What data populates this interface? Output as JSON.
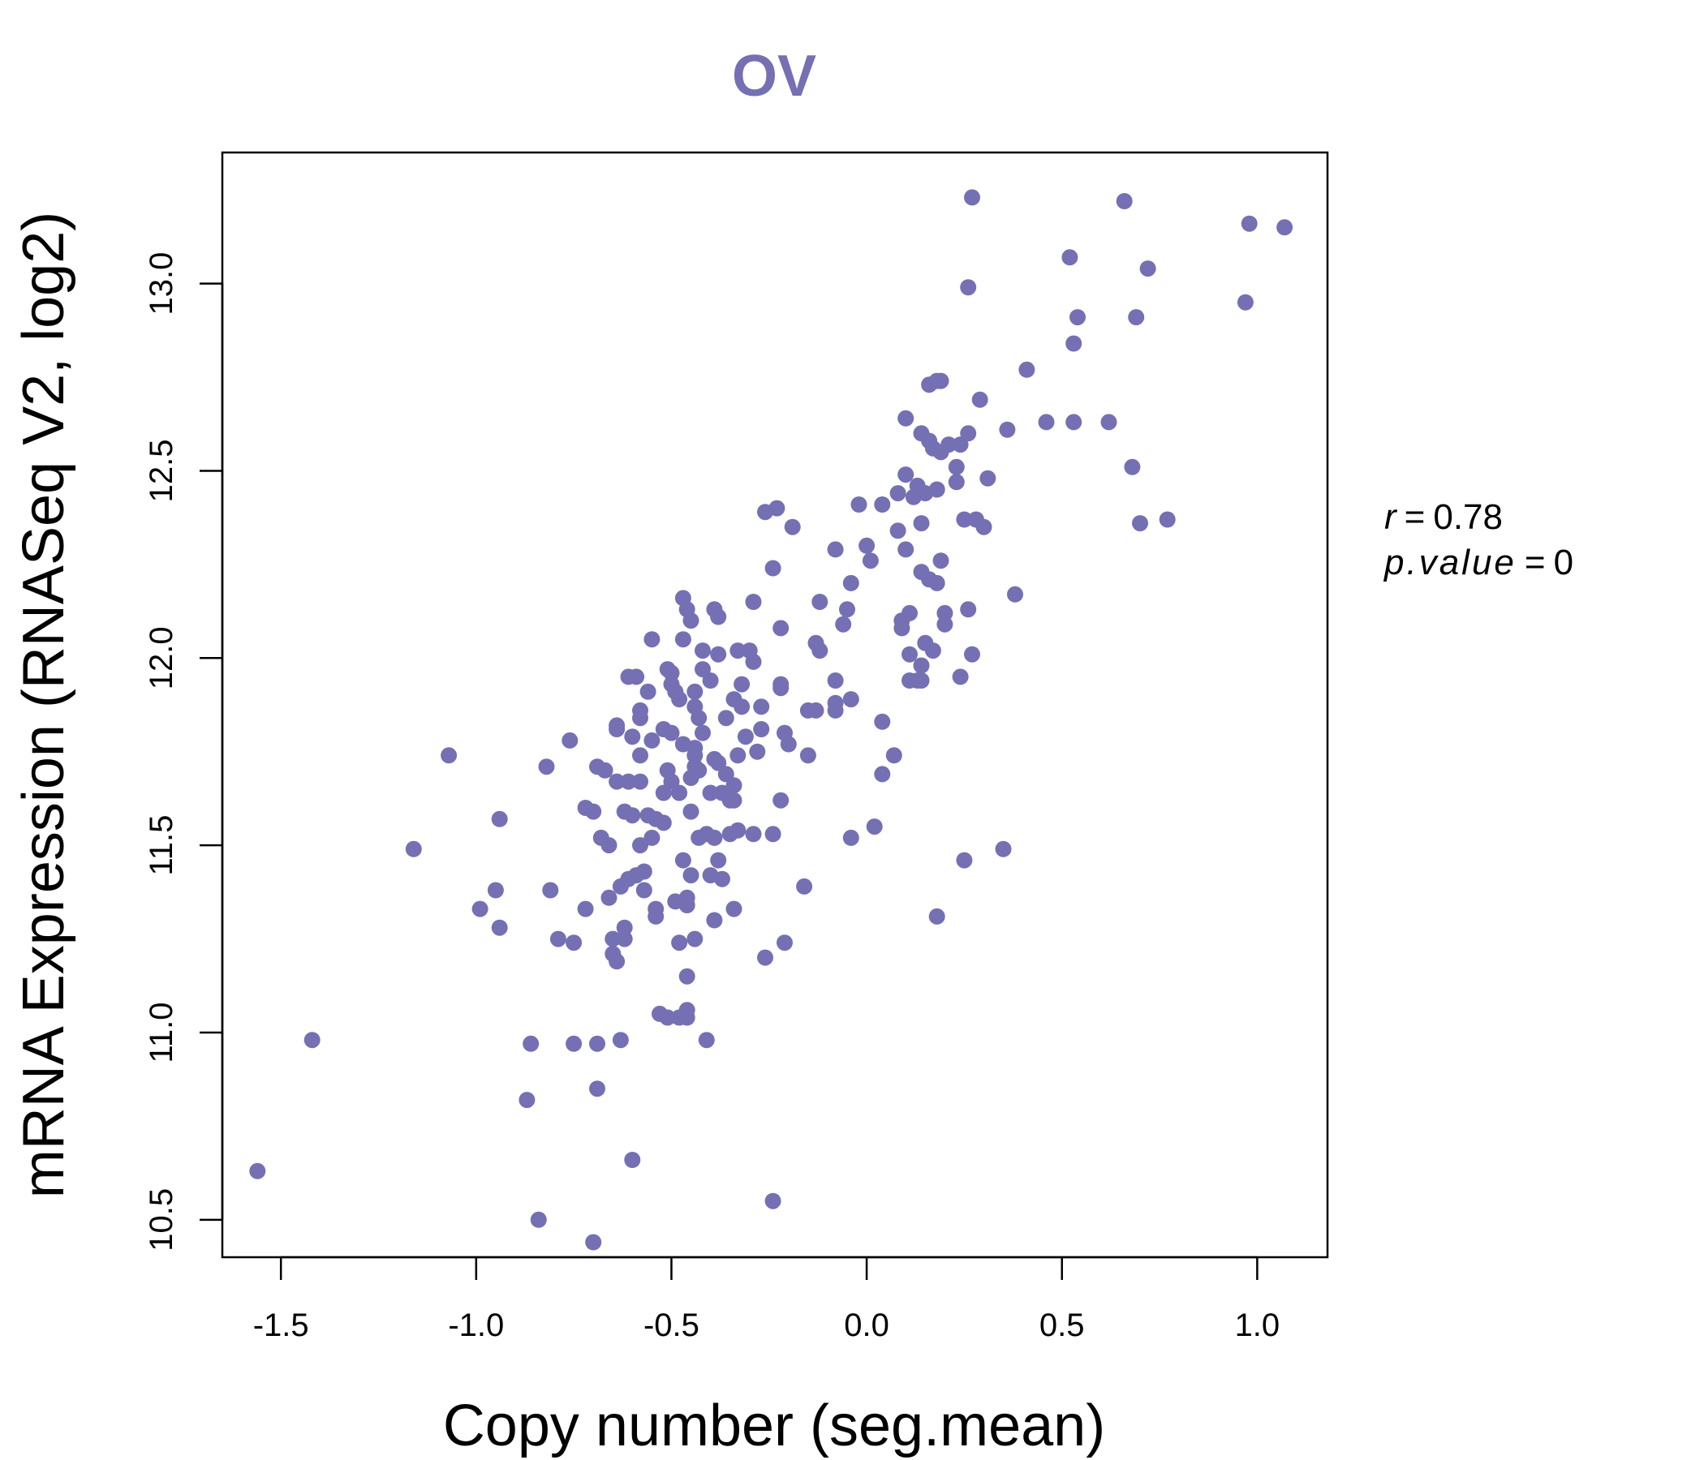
{
  "chart_data": {
    "type": "scatter",
    "title": "OV",
    "xlabel": "Copy number (seg.mean)",
    "ylabel": "mRNA Expression (RNASeq V2, log2)",
    "xlim": [
      -1.65,
      1.18
    ],
    "ylim": [
      10.4,
      13.35
    ],
    "x_ticks": [
      -1.5,
      -1.0,
      -0.5,
      0.0,
      0.5,
      1.0
    ],
    "x_tick_labels": [
      "-1.5",
      "-1.0",
      "-0.5",
      "0.0",
      "0.5",
      "1.0"
    ],
    "y_ticks": [
      10.5,
      11.0,
      11.5,
      12.0,
      12.5,
      13.0
    ],
    "y_tick_labels": [
      "10.5",
      "11.0",
      "11.5",
      "12.0",
      "12.5",
      "13.0"
    ],
    "point_color": "#7570b3",
    "stats": {
      "r_label": "r",
      "r_value": "0.78",
      "p_label": "p.value",
      "p_value": "0"
    },
    "series": [
      {
        "name": "OV",
        "points": [
          [
            -1.56,
            10.63
          ],
          [
            -1.42,
            10.98
          ],
          [
            -1.16,
            11.49
          ],
          [
            -1.07,
            11.74
          ],
          [
            -0.99,
            11.33
          ],
          [
            -0.95,
            11.38
          ],
          [
            -0.94,
            11.28
          ],
          [
            -0.94,
            11.57
          ],
          [
            -0.86,
            10.97
          ],
          [
            -0.87,
            10.82
          ],
          [
            -0.84,
            10.5
          ],
          [
            -0.82,
            11.71
          ],
          [
            -0.81,
            11.38
          ],
          [
            -0.79,
            11.25
          ],
          [
            -0.76,
            11.78
          ],
          [
            -0.75,
            11.24
          ],
          [
            -0.75,
            10.97
          ],
          [
            -0.72,
            11.6
          ],
          [
            -0.72,
            11.33
          ],
          [
            -0.7,
            11.59
          ],
          [
            -0.7,
            10.44
          ],
          [
            -0.69,
            11.71
          ],
          [
            -0.69,
            10.97
          ],
          [
            -0.69,
            10.85
          ],
          [
            -0.68,
            11.52
          ],
          [
            -0.67,
            11.7
          ],
          [
            -0.66,
            11.5
          ],
          [
            -0.66,
            11.36
          ],
          [
            -0.65,
            11.25
          ],
          [
            -0.65,
            11.21
          ],
          [
            -0.64,
            11.19
          ],
          [
            -0.64,
            11.81
          ],
          [
            -0.64,
            11.82
          ],
          [
            -0.64,
            11.67
          ],
          [
            -0.63,
            10.98
          ],
          [
            -0.63,
            11.39
          ],
          [
            -0.62,
            11.25
          ],
          [
            -0.62,
            11.28
          ],
          [
            -0.62,
            11.59
          ],
          [
            -0.61,
            11.95
          ],
          [
            -0.61,
            11.67
          ],
          [
            -0.61,
            11.41
          ],
          [
            -0.6,
            11.79
          ],
          [
            -0.6,
            11.58
          ],
          [
            -0.6,
            10.66
          ],
          [
            -0.59,
            11.95
          ],
          [
            -0.59,
            11.42
          ],
          [
            -0.58,
            11.84
          ],
          [
            -0.58,
            11.86
          ],
          [
            -0.58,
            11.74
          ],
          [
            -0.58,
            11.67
          ],
          [
            -0.58,
            11.5
          ],
          [
            -0.57,
            11.43
          ],
          [
            -0.57,
            11.38
          ],
          [
            -0.56,
            11.91
          ],
          [
            -0.56,
            11.58
          ],
          [
            -0.55,
            12.05
          ],
          [
            -0.55,
            11.78
          ],
          [
            -0.55,
            11.52
          ],
          [
            -0.54,
            11.57
          ],
          [
            -0.54,
            11.31
          ],
          [
            -0.54,
            11.33
          ],
          [
            -0.53,
            11.05
          ],
          [
            -0.52,
            11.81
          ],
          [
            -0.52,
            11.64
          ],
          [
            -0.52,
            11.56
          ],
          [
            -0.51,
            11.97
          ],
          [
            -0.51,
            11.7
          ],
          [
            -0.51,
            11.04
          ],
          [
            -0.5,
            11.8
          ],
          [
            -0.5,
            11.93
          ],
          [
            -0.5,
            11.96
          ],
          [
            -0.5,
            11.67
          ],
          [
            -0.49,
            11.91
          ],
          [
            -0.49,
            11.35
          ],
          [
            -0.48,
            11.04
          ],
          [
            -0.48,
            11.89
          ],
          [
            -0.48,
            11.64
          ],
          [
            -0.48,
            11.24
          ],
          [
            -0.47,
            12.16
          ],
          [
            -0.47,
            12.05
          ],
          [
            -0.47,
            11.77
          ],
          [
            -0.47,
            11.46
          ],
          [
            -0.46,
            11.36
          ],
          [
            -0.46,
            11.34
          ],
          [
            -0.46,
            11.15
          ],
          [
            -0.46,
            11.06
          ],
          [
            -0.46,
            11.04
          ],
          [
            -0.46,
            12.13
          ],
          [
            -0.45,
            12.1
          ],
          [
            -0.45,
            11.59
          ],
          [
            -0.45,
            11.68
          ],
          [
            -0.45,
            11.42
          ],
          [
            -0.44,
            11.76
          ],
          [
            -0.44,
            11.71
          ],
          [
            -0.44,
            11.74
          ],
          [
            -0.44,
            11.91
          ],
          [
            -0.44,
            11.87
          ],
          [
            -0.44,
            11.25
          ],
          [
            -0.43,
            11.52
          ],
          [
            -0.43,
            11.7
          ],
          [
            -0.43,
            11.84
          ],
          [
            -0.42,
            12.02
          ],
          [
            -0.42,
            11.97
          ],
          [
            -0.42,
            11.8
          ],
          [
            -0.41,
            11.53
          ],
          [
            -0.41,
            10.98
          ],
          [
            -0.4,
            11.94
          ],
          [
            -0.4,
            11.64
          ],
          [
            -0.4,
            11.42
          ],
          [
            -0.39,
            11.52
          ],
          [
            -0.39,
            11.3
          ],
          [
            -0.39,
            11.73
          ],
          [
            -0.39,
            12.13
          ],
          [
            -0.38,
            12.11
          ],
          [
            -0.38,
            12.01
          ],
          [
            -0.38,
            11.46
          ],
          [
            -0.38,
            11.72
          ],
          [
            -0.37,
            11.64
          ],
          [
            -0.37,
            11.41
          ],
          [
            -0.36,
            11.84
          ],
          [
            -0.36,
            11.69
          ],
          [
            -0.35,
            11.53
          ],
          [
            -0.35,
            11.62
          ],
          [
            -0.34,
            11.62
          ],
          [
            -0.34,
            11.89
          ],
          [
            -0.34,
            11.66
          ],
          [
            -0.34,
            11.33
          ],
          [
            -0.33,
            12.02
          ],
          [
            -0.33,
            11.74
          ],
          [
            -0.33,
            11.54
          ],
          [
            -0.32,
            11.93
          ],
          [
            -0.32,
            11.87
          ],
          [
            -0.31,
            11.79
          ],
          [
            -0.3,
            12.02
          ],
          [
            -0.29,
            11.53
          ],
          [
            -0.29,
            12.15
          ],
          [
            -0.29,
            11.99
          ],
          [
            -0.28,
            11.75
          ],
          [
            -0.27,
            11.81
          ],
          [
            -0.27,
            11.87
          ],
          [
            -0.26,
            12.39
          ],
          [
            -0.26,
            11.2
          ],
          [
            -0.24,
            12.24
          ],
          [
            -0.24,
            11.53
          ],
          [
            -0.24,
            10.55
          ],
          [
            -0.23,
            12.4
          ],
          [
            -0.22,
            11.92
          ],
          [
            -0.22,
            11.93
          ],
          [
            -0.22,
            12.08
          ],
          [
            -0.22,
            11.62
          ],
          [
            -0.21,
            11.24
          ],
          [
            -0.21,
            11.8
          ],
          [
            -0.2,
            11.77
          ],
          [
            -0.19,
            12.35
          ],
          [
            -0.16,
            11.39
          ],
          [
            -0.15,
            11.86
          ],
          [
            -0.15,
            11.74
          ],
          [
            -0.13,
            11.86
          ],
          [
            -0.13,
            12.04
          ],
          [
            -0.12,
            12.02
          ],
          [
            -0.12,
            12.15
          ],
          [
            -0.08,
            12.29
          ],
          [
            -0.08,
            11.88
          ],
          [
            -0.08,
            11.86
          ],
          [
            -0.08,
            11.94
          ],
          [
            -0.06,
            12.09
          ],
          [
            -0.05,
            12.13
          ],
          [
            -0.04,
            12.2
          ],
          [
            -0.04,
            11.89
          ],
          [
            -0.04,
            11.52
          ],
          [
            -0.02,
            12.41
          ],
          [
            0.0,
            12.3
          ],
          [
            0.01,
            12.26
          ],
          [
            0.02,
            11.55
          ],
          [
            0.04,
            11.69
          ],
          [
            0.04,
            11.83
          ],
          [
            0.04,
            12.41
          ],
          [
            0.07,
            11.74
          ],
          [
            0.08,
            12.44
          ],
          [
            0.08,
            12.34
          ],
          [
            0.09,
            12.08
          ],
          [
            0.09,
            12.1
          ],
          [
            0.1,
            12.49
          ],
          [
            0.1,
            12.64
          ],
          [
            0.1,
            12.29
          ],
          [
            0.11,
            12.01
          ],
          [
            0.11,
            12.12
          ],
          [
            0.11,
            11.94
          ],
          [
            0.12,
            12.43
          ],
          [
            0.13,
            11.94
          ],
          [
            0.13,
            12.46
          ],
          [
            0.14,
            12.6
          ],
          [
            0.14,
            12.36
          ],
          [
            0.14,
            12.23
          ],
          [
            0.14,
            11.98
          ],
          [
            0.14,
            11.94
          ],
          [
            0.15,
            12.44
          ],
          [
            0.15,
            12.04
          ],
          [
            0.16,
            12.58
          ],
          [
            0.16,
            12.73
          ],
          [
            0.16,
            12.21
          ],
          [
            0.17,
            12.56
          ],
          [
            0.17,
            12.02
          ],
          [
            0.18,
            12.45
          ],
          [
            0.18,
            12.74
          ],
          [
            0.18,
            12.2
          ],
          [
            0.18,
            11.31
          ],
          [
            0.19,
            12.74
          ],
          [
            0.19,
            12.55
          ],
          [
            0.19,
            12.26
          ],
          [
            0.2,
            12.12
          ],
          [
            0.2,
            12.09
          ],
          [
            0.21,
            12.57
          ],
          [
            0.23,
            12.51
          ],
          [
            0.23,
            12.47
          ],
          [
            0.24,
            12.57
          ],
          [
            0.24,
            11.95
          ],
          [
            0.25,
            12.37
          ],
          [
            0.25,
            11.46
          ],
          [
            0.26,
            12.99
          ],
          [
            0.26,
            12.6
          ],
          [
            0.26,
            12.13
          ],
          [
            0.27,
            12.01
          ],
          [
            0.27,
            13.23
          ],
          [
            0.28,
            12.37
          ],
          [
            0.29,
            12.69
          ],
          [
            0.3,
            12.35
          ],
          [
            0.31,
            12.48
          ],
          [
            0.35,
            11.49
          ],
          [
            0.36,
            12.61
          ],
          [
            0.38,
            12.17
          ],
          [
            0.41,
            12.77
          ],
          [
            0.46,
            12.63
          ],
          [
            0.52,
            13.07
          ],
          [
            0.53,
            12.63
          ],
          [
            0.53,
            12.84
          ],
          [
            0.54,
            12.91
          ],
          [
            0.62,
            12.63
          ],
          [
            0.66,
            13.22
          ],
          [
            0.68,
            12.51
          ],
          [
            0.69,
            12.91
          ],
          [
            0.7,
            12.36
          ],
          [
            0.72,
            13.04
          ],
          [
            0.77,
            12.37
          ],
          [
            0.97,
            12.95
          ],
          [
            0.98,
            13.16
          ],
          [
            1.07,
            13.15
          ]
        ]
      }
    ]
  }
}
